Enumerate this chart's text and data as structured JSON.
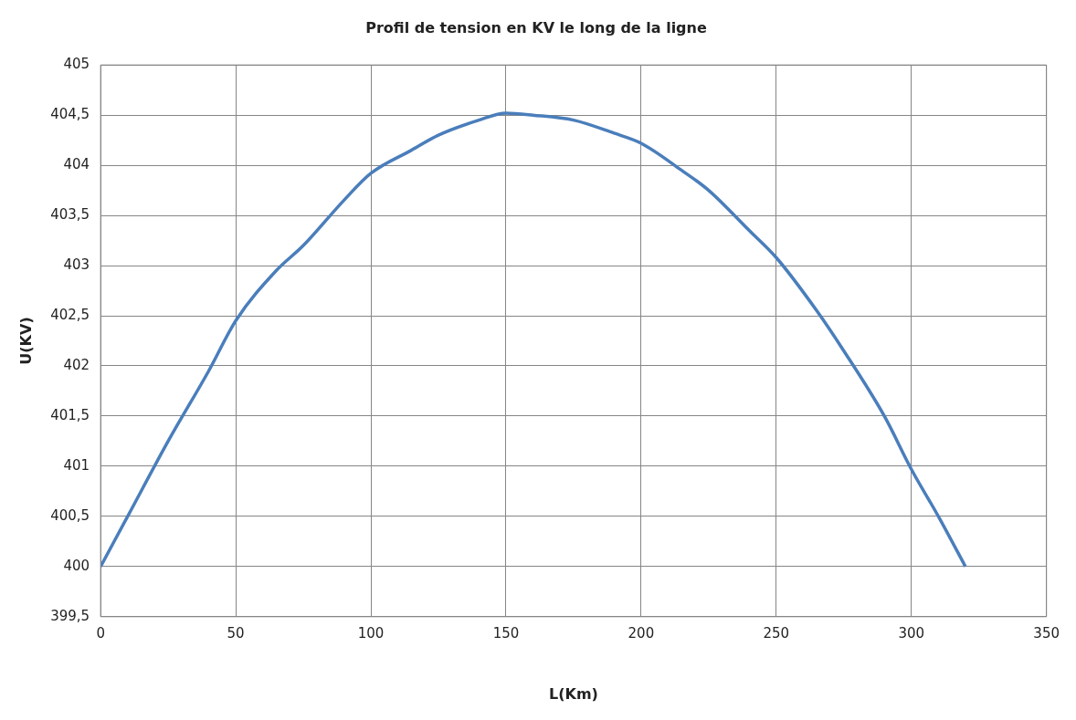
{
  "chart_data": {
    "type": "line",
    "title": "Profil de tension en KV le long de la ligne",
    "xlabel": "L(Km)",
    "ylabel": "U(KV)",
    "series": [
      {
        "color": "#4a7ebb",
        "x": [
          0,
          10,
          25,
          40,
          50,
          65,
          75,
          90,
          100,
          115,
          125,
          140,
          150,
          160,
          175,
          190,
          200,
          215,
          225,
          240,
          250,
          265,
          275,
          290,
          300,
          310,
          320
        ],
        "values": [
          400,
          400.5,
          401.25,
          401.95,
          402.45,
          402.95,
          403.2,
          403.65,
          403.92,
          404.15,
          404.3,
          404.45,
          404.52,
          404.5,
          404.45,
          404.32,
          404.22,
          403.95,
          403.75,
          403.35,
          403.08,
          402.55,
          402.15,
          401.5,
          400.97,
          400.5,
          400
        ]
      }
    ],
    "xlim": [
      0,
      350
    ],
    "xticks": [
      0,
      50,
      100,
      150,
      200,
      250,
      300,
      350
    ],
    "ylim": [
      399.5,
      405
    ],
    "yticks": [
      {
        "value": 399.5,
        "label": "399,5"
      },
      {
        "value": 400,
        "label": "400"
      },
      {
        "value": 400.5,
        "label": "400,5"
      },
      {
        "value": 401,
        "label": "401"
      },
      {
        "value": 401.5,
        "label": "401,5"
      },
      {
        "value": 402,
        "label": "402"
      },
      {
        "value": 402.5,
        "label": "402,5"
      },
      {
        "value": 403,
        "label": "403"
      },
      {
        "value": 403.5,
        "label": "403,5"
      },
      {
        "value": 404,
        "label": "404"
      },
      {
        "value": 404.5,
        "label": "404,5"
      },
      {
        "value": 405,
        "label": "405"
      }
    ],
    "grid": true,
    "legend": false,
    "marker": "none",
    "line_style": "solid"
  }
}
